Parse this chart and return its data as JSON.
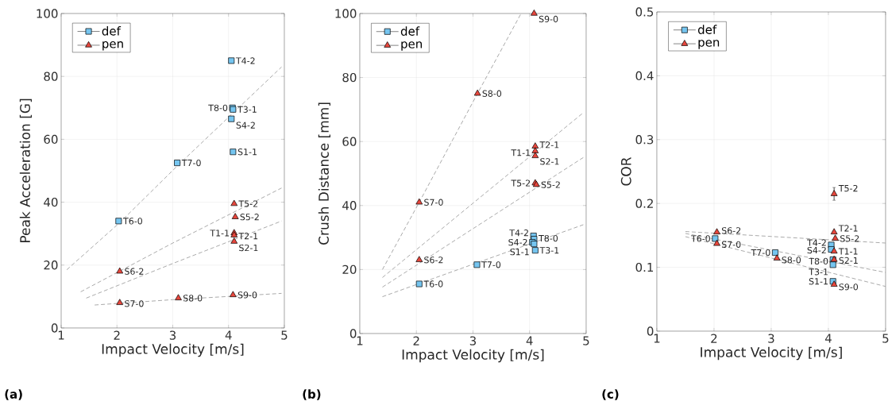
{
  "chart_data": [
    {
      "type": "scatter",
      "xlabel": "Impact Velocity [m/s]",
      "ylabel": "Peak Acceleration [G]",
      "xlim": [
        1,
        5
      ],
      "ylim": [
        0,
        100
      ],
      "xticks": [
        1,
        2,
        3,
        4,
        5
      ],
      "yticks": [
        0,
        20,
        40,
        60,
        80,
        100
      ],
      "grid": true,
      "legend": "top left",
      "series": [
        {
          "name": "def",
          "color": "#75c5f0",
          "marker": "square",
          "x": [
            2.03,
            3.08,
            4.07,
            4.08,
            4.05,
            4.08,
            4.05
          ],
          "values": [
            34,
            52.5,
            70,
            69.5,
            66.5,
            56,
            85
          ]
        },
        {
          "name": "pen",
          "color": "#e8463c",
          "marker": "triangle",
          "x": [
            2.05,
            2.05,
            3.1,
            4.08,
            4.1,
            4.12,
            4.1,
            4.1,
            4.1
          ],
          "values": [
            8,
            18,
            9.5,
            10.5,
            39.5,
            35.3,
            30.2,
            29.5,
            27.5
          ]
        },
        {
          "type": "line",
          "color": "#a0a0a0",
          "line_style": "dashed",
          "marker": "none",
          "x": [
            1.1,
            2.05,
            3.08,
            4.95
          ],
          "values": [
            18.5,
            33.5,
            51.5,
            83
          ]
        },
        {
          "type": "line",
          "color": "#a0a0a0",
          "line_style": "dashed",
          "marker": "none",
          "x": [
            1.35,
            3,
            4.95
          ],
          "values": [
            11.5,
            27,
            44.5
          ]
        },
        {
          "type": "line",
          "color": "#a0a0a0",
          "line_style": "dashed",
          "marker": "none",
          "x": [
            1.45,
            3,
            4.95
          ],
          "values": [
            9.5,
            20.5,
            34
          ]
        },
        {
          "type": "line",
          "color": "#a0a0a0",
          "line_style": "dashed",
          "marker": "none",
          "x": [
            1.6,
            3,
            4.95
          ],
          "values": [
            7.3,
            9,
            11
          ]
        }
      ],
      "annotations": [
        {
          "text": "T6-0",
          "x": 2.03,
          "y": 34
        },
        {
          "text": "T7-0",
          "x": 3.08,
          "y": 52.5
        },
        {
          "text": "T8-0",
          "x": 4.07,
          "y": 70
        },
        {
          "text": "T3-1",
          "x": 4.08,
          "y": 69.5
        },
        {
          "text": "S4-2",
          "x": 4.05,
          "y": 66.5
        },
        {
          "text": "S1-1",
          "x": 4.08,
          "y": 56
        },
        {
          "text": "T4-2",
          "x": 4.05,
          "y": 85
        },
        {
          "text": "S7-0",
          "x": 2.05,
          "y": 8
        },
        {
          "text": "S6-2",
          "x": 2.05,
          "y": 18
        },
        {
          "text": "S8-0",
          "x": 3.1,
          "y": 9.5
        },
        {
          "text": "S9-0",
          "x": 4.08,
          "y": 10.5
        },
        {
          "text": "T5-2",
          "x": 4.1,
          "y": 39.5
        },
        {
          "text": "S5-2",
          "x": 4.12,
          "y": 35.3
        },
        {
          "text": "T1-1",
          "x": 4.1,
          "y": 30.2
        },
        {
          "text": "T2-1",
          "x": 4.1,
          "y": 29.5
        },
        {
          "text": "S2-1",
          "x": 4.1,
          "y": 27.5
        },
        "(a)"
      ]
    },
    {
      "type": "scatter",
      "xlabel": "Impact Velocity [m/s]",
      "ylabel": "Crush Distance [mm]",
      "xlim": [
        1,
        5
      ],
      "ylim": [
        0,
        100
      ],
      "xticks": [
        1,
        2,
        3,
        4,
        5
      ],
      "yticks": [
        0,
        20,
        40,
        60,
        80,
        100
      ],
      "grid": true,
      "legend": "top left",
      "series": [
        {
          "name": "def",
          "color": "#75c5f0",
          "marker": "square",
          "x": [
            2.05,
            3.07,
            4.07,
            4.08,
            4.05,
            4.08,
            4.1
          ],
          "values": [
            15.5,
            21.5,
            30.5,
            29.5,
            28.5,
            28,
            26
          ]
        },
        {
          "name": "pen",
          "color": "#e8463c",
          "marker": "triangle",
          "x": [
            2.05,
            2.05,
            3.08,
            4.08,
            4.1,
            4.1,
            4.1,
            4.1,
            4.12
          ],
          "values": [
            41,
            23,
            75,
            100,
            58.5,
            57,
            55.5,
            47,
            46.5
          ]
        },
        {
          "type": "line",
          "color": "#a0a0a0",
          "line_style": "dashed",
          "marker": "none",
          "x": [
            1.4,
            2.05,
            3.08,
            3.85
          ],
          "values": [
            20,
            41,
            75,
            100
          ]
        },
        {
          "type": "line",
          "color": "#a0a0a0",
          "line_style": "dashed",
          "marker": "none",
          "x": [
            1.4,
            4.95
          ],
          "values": [
            17.5,
            69
          ]
        },
        {
          "type": "line",
          "color": "#a0a0a0",
          "line_style": "dashed",
          "marker": "none",
          "x": [
            1.4,
            4.95
          ],
          "values": [
            14.5,
            55
          ]
        },
        {
          "type": "line",
          "color": "#a0a0a0",
          "line_style": "dashed",
          "marker": "none",
          "x": [
            1.4,
            4.95
          ],
          "values": [
            11.5,
            34
          ]
        }
      ],
      "annotations": [
        {
          "text": "T6-0",
          "x": 2.05,
          "y": 15.5
        },
        {
          "text": "T7-0",
          "x": 3.07,
          "y": 21.5
        },
        {
          "text": "T4-2",
          "x": 4.07,
          "y": 30.5
        },
        {
          "text": "T8-0",
          "x": 4.08,
          "y": 29.5
        },
        {
          "text": "S4-2",
          "x": 4.05,
          "y": 28.5
        },
        {
          "text": "S1-1",
          "x": 4.08,
          "y": 28
        },
        {
          "text": "T3-1",
          "x": 4.1,
          "y": 26
        },
        {
          "text": "S7-0",
          "x": 2.05,
          "y": 41
        },
        {
          "text": "S6-2",
          "x": 2.05,
          "y": 23
        },
        {
          "text": "S8-0",
          "x": 3.08,
          "y": 75
        },
        {
          "text": "S9-0",
          "x": 4.08,
          "y": 100
        },
        {
          "text": "T2-1",
          "x": 4.1,
          "y": 58.5
        },
        {
          "text": "T1-1",
          "x": 4.1,
          "y": 57
        },
        {
          "text": "S2-1",
          "x": 4.1,
          "y": 55.5
        },
        {
          "text": "T5-2",
          "x": 4.1,
          "y": 47
        },
        {
          "text": "S5-2",
          "x": 4.12,
          "y": 46.5
        },
        "(b)"
      ]
    },
    {
      "type": "scatter",
      "xlabel": "Impact Velocity [m/s]",
      "ylabel": "COR",
      "xlim": [
        1,
        5
      ],
      "ylim": [
        0,
        0.5
      ],
      "xticks": [
        1,
        2,
        3,
        4,
        5
      ],
      "yticks": [
        0,
        0.1,
        0.2,
        0.3,
        0.4,
        0.5
      ],
      "grid": true,
      "legend": "top left",
      "series": [
        {
          "name": "def",
          "color": "#75c5f0",
          "marker": "square",
          "x": [
            2.02,
            3.07,
            4.05,
            4.05,
            4.08,
            4.08,
            4.08
          ],
          "values": [
            0.145,
            0.123,
            0.135,
            0.128,
            0.112,
            0.104,
            0.078
          ]
        },
        {
          "name": "pen",
          "color": "#e8463c",
          "marker": "triangle",
          "x": [
            2.05,
            2.05,
            3.1,
            4.1,
            4.1,
            4.12,
            4.1,
            4.1,
            4.1
          ],
          "values": [
            0.155,
            0.137,
            0.114,
            0.215,
            0.155,
            0.145,
            0.125,
            0.112,
            0.073
          ],
          "errors": [
            null,
            null,
            null,
            0.01,
            null,
            null,
            null,
            null,
            null
          ]
        },
        {
          "type": "line",
          "color": "#a0a0a0",
          "line_style": "dashed",
          "marker": "none",
          "x": [
            1.5,
            5
          ],
          "values": [
            0.156,
            0.138
          ]
        },
        {
          "type": "line",
          "color": "#a0a0a0",
          "line_style": "dashed",
          "marker": "none",
          "x": [
            1.5,
            5
          ],
          "values": [
            0.153,
            0.092
          ]
        },
        {
          "type": "line",
          "color": "#a0a0a0",
          "line_style": "dashed",
          "marker": "none",
          "x": [
            1.5,
            5
          ],
          "values": [
            0.148,
            0.07
          ]
        }
      ],
      "annotations": [
        {
          "text": "T6-0",
          "x": 2.02,
          "y": 0.145
        },
        {
          "text": "T7-0",
          "x": 3.07,
          "y": 0.123
        },
        {
          "text": "T4-2",
          "x": 4.05,
          "y": 0.135
        },
        {
          "text": "S4-2",
          "x": 4.05,
          "y": 0.128
        },
        {
          "text": "T8-0",
          "x": 4.08,
          "y": 0.112
        },
        {
          "text": "T3-1",
          "x": 4.08,
          "y": 0.104
        },
        {
          "text": "S1-1",
          "x": 4.08,
          "y": 0.078
        },
        {
          "text": "S6-2",
          "x": 2.05,
          "y": 0.155
        },
        {
          "text": "S7-0",
          "x": 2.05,
          "y": 0.137
        },
        {
          "text": "S8-0",
          "x": 3.1,
          "y": 0.114
        },
        {
          "text": "T5-2",
          "x": 4.1,
          "y": 0.215
        },
        {
          "text": "T2-1",
          "x": 4.1,
          "y": 0.155
        },
        {
          "text": "S5-2",
          "x": 4.12,
          "y": 0.145
        },
        {
          "text": "T1-1",
          "x": 4.1,
          "y": 0.125
        },
        {
          "text": "S2-1",
          "x": 4.1,
          "y": 0.112
        },
        {
          "text": "S9-0",
          "x": 4.1,
          "y": 0.073
        },
        "(c)"
      ]
    }
  ]
}
